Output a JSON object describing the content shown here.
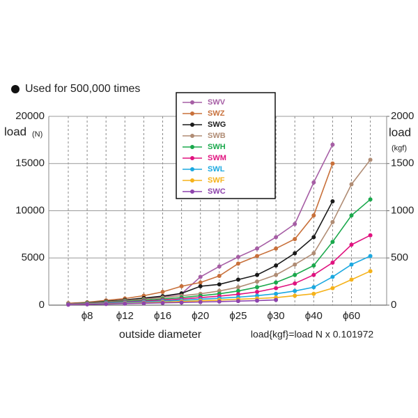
{
  "chart_data": {
    "type": "line",
    "note_text": "Used for 500,000 times",
    "y_label": "load",
    "y_unit": "(N)",
    "y2_label": "load",
    "y2_unit": "(kgf)",
    "x_label": "outside diameter",
    "formula": "load{kgf}=load N x 0.101972",
    "categories": [
      null,
      "ϕ8",
      null,
      "ϕ12",
      null,
      "ϕ16",
      null,
      "ϕ20",
      null,
      "ϕ25",
      null,
      "ϕ30",
      null,
      "ϕ40",
      null,
      "ϕ60",
      null
    ],
    "ylim": [
      0,
      20000
    ],
    "yticks": [
      0,
      5000,
      10000,
      15000,
      20000
    ],
    "y2lim": [
      0,
      2000
    ],
    "y2ticks": [
      0,
      500,
      1000,
      1500,
      2000
    ],
    "grid": true,
    "series": [
      {
        "name": "SWV",
        "color": "#a65ea5",
        "values": [
          150,
          250,
          400,
          550,
          700,
          900,
          1200,
          3000,
          4100,
          5100,
          6000,
          7200,
          8600,
          13000,
          17000,
          null,
          null
        ]
      },
      {
        "name": "SWZ",
        "color": "#c8703a",
        "values": [
          200,
          300,
          500,
          700,
          1000,
          1400,
          2000,
          2400,
          3100,
          4400,
          5200,
          6000,
          7000,
          9500,
          15000,
          null,
          null
        ]
      },
      {
        "name": "SWG",
        "color": "#1a1a1a",
        "values": [
          150,
          250,
          400,
          550,
          750,
          950,
          1250,
          2000,
          2200,
          2700,
          3200,
          4200,
          5500,
          7200,
          11000,
          null,
          null
        ]
      },
      {
        "name": "SWB",
        "color": "#b08c74",
        "values": [
          150,
          230,
          350,
          480,
          620,
          800,
          1000,
          1200,
          1500,
          1900,
          2500,
          3200,
          4300,
          5500,
          8800,
          12800,
          15400
        ]
      },
      {
        "name": "SWH",
        "color": "#1aa84c",
        "values": [
          120,
          200,
          300,
          400,
          520,
          650,
          800,
          1000,
          1200,
          1500,
          1900,
          2400,
          3200,
          4200,
          6700,
          9500,
          11200
        ]
      },
      {
        "name": "SWM",
        "color": "#e0127f",
        "values": [
          100,
          160,
          240,
          330,
          430,
          530,
          650,
          800,
          950,
          1150,
          1400,
          1800,
          2300,
          3200,
          4500,
          6400,
          7400
        ]
      },
      {
        "name": "SWL",
        "color": "#1ba8e0",
        "values": [
          80,
          130,
          200,
          270,
          350,
          430,
          520,
          620,
          730,
          850,
          1000,
          1200,
          1500,
          1900,
          3000,
          4300,
          5200
        ]
      },
      {
        "name": "SWF",
        "color": "#f5b21a",
        "values": [
          60,
          100,
          150,
          200,
          260,
          320,
          390,
          460,
          540,
          620,
          700,
          800,
          1000,
          1200,
          1800,
          2700,
          3600
        ]
      },
      {
        "name": "SWC",
        "color": "#8e44ad",
        "values": [
          50,
          80,
          120,
          160,
          200,
          240,
          280,
          330,
          380,
          430,
          480,
          550,
          null,
          null,
          null,
          null,
          null
        ]
      }
    ]
  }
}
